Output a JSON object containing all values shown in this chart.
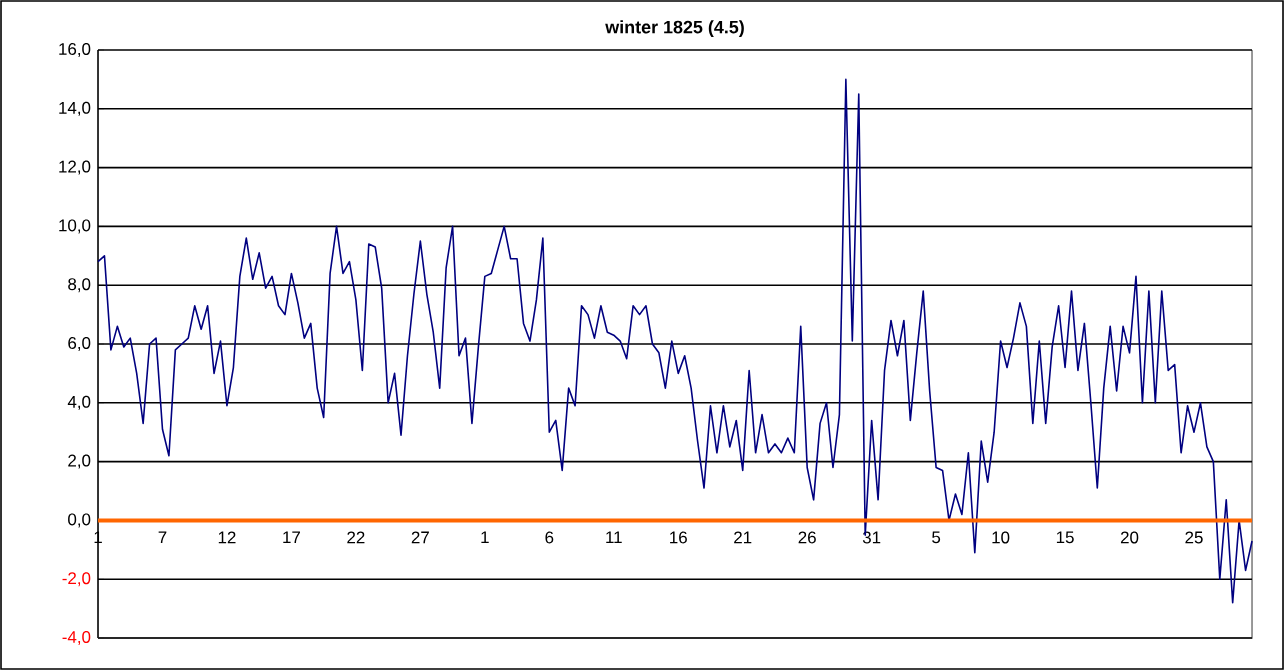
{
  "chart_data": {
    "type": "line",
    "title": "winter 1825 (4.5)",
    "categories": [
      "1",
      null,
      null,
      null,
      null,
      null,
      null,
      null,
      null,
      null,
      "7",
      null,
      null,
      null,
      null,
      null,
      null,
      null,
      null,
      null,
      "12",
      null,
      null,
      null,
      null,
      null,
      null,
      null,
      null,
      null,
      "17",
      null,
      null,
      null,
      null,
      null,
      null,
      null,
      null,
      null,
      "22",
      null,
      null,
      null,
      null,
      null,
      null,
      null,
      null,
      null,
      "27",
      null,
      null,
      null,
      null,
      null,
      null,
      null,
      null,
      null,
      "1",
      null,
      null,
      null,
      null,
      null,
      null,
      null,
      null,
      null,
      "6",
      null,
      null,
      null,
      null,
      null,
      null,
      null,
      null,
      null,
      "11",
      null,
      null,
      null,
      null,
      null,
      null,
      null,
      null,
      null,
      "16",
      null,
      null,
      null,
      null,
      null,
      null,
      null,
      null,
      null,
      "21",
      null,
      null,
      null,
      null,
      null,
      null,
      null,
      null,
      null,
      "26",
      null,
      null,
      null,
      null,
      null,
      null,
      null,
      null,
      null,
      "31",
      null,
      null,
      null,
      null,
      null,
      null,
      null,
      null,
      null,
      "5",
      null,
      null,
      null,
      null,
      null,
      null,
      null,
      null,
      null,
      "10",
      null,
      null,
      null,
      null,
      null,
      null,
      null,
      null,
      null,
      "15",
      null,
      null,
      null,
      null,
      null,
      null,
      null,
      null,
      null,
      "20",
      null,
      null,
      null,
      null,
      null,
      null,
      null,
      null,
      null,
      "25",
      null,
      null,
      null,
      null,
      null,
      null,
      null,
      null,
      null
    ],
    "ylim": [
      -4,
      16
    ],
    "yticks": [
      {
        "value": -4,
        "label": "-4,0"
      },
      {
        "value": -2,
        "label": "-2,0"
      },
      {
        "value": 0,
        "label": "0,0"
      },
      {
        "value": 2,
        "label": "2,0"
      },
      {
        "value": 4,
        "label": "4,0"
      },
      {
        "value": 6,
        "label": "6,0"
      },
      {
        "value": 8,
        "label": "8,0"
      },
      {
        "value": 10,
        "label": "10,0"
      },
      {
        "value": 12,
        "label": "12,0"
      },
      {
        "value": 14,
        "label": "14,0"
      },
      {
        "value": 16,
        "label": "16,0"
      }
    ],
    "grid": "y",
    "marker": "none",
    "line_style": "solid",
    "series": [
      {
        "color": "#000080",
        "values": [
          8.8,
          9.0,
          5.8,
          6.6,
          5.9,
          6.2,
          5.0,
          3.3,
          6.0,
          6.2,
          3.1,
          2.2,
          5.8,
          6.0,
          6.2,
          7.3,
          6.5,
          7.3,
          5.0,
          6.1,
          3.9,
          5.2,
          8.3,
          9.6,
          8.2,
          9.1,
          7.9,
          8.3,
          7.3,
          7.0,
          8.4,
          7.4,
          6.2,
          6.7,
          4.5,
          3.5,
          8.4,
          10.0,
          8.4,
          8.8,
          7.5,
          5.1,
          9.4,
          9.3,
          7.9,
          4.0,
          5.0,
          2.9,
          5.6,
          7.7,
          9.5,
          7.7,
          6.4,
          4.5,
          8.6,
          10.0,
          5.6,
          6.2,
          3.3,
          5.9,
          8.3,
          8.4,
          9.2,
          10.0,
          8.9,
          8.9,
          6.7,
          6.1,
          7.5,
          9.6,
          3.0,
          3.4,
          1.7,
          4.5,
          3.9,
          7.3,
          7.0,
          6.2,
          7.3,
          6.4,
          6.3,
          6.1,
          5.5,
          7.3,
          7.0,
          7.3,
          6.0,
          5.7,
          4.5,
          6.1,
          5.0,
          5.6,
          4.5,
          2.7,
          1.1,
          3.9,
          2.3,
          3.9,
          2.5,
          3.4,
          1.7,
          5.1,
          2.3,
          3.6,
          2.3,
          2.6,
          2.3,
          2.8,
          2.3,
          6.6,
          1.8,
          0.7,
          3.3,
          4.0,
          1.8,
          3.6,
          15.0,
          6.1,
          14.5,
          -0.5,
          3.4,
          0.7,
          5.1,
          6.8,
          5.6,
          6.8,
          3.4,
          5.7,
          7.8,
          4.4,
          1.8,
          1.7,
          0.0,
          0.9,
          0.2,
          2.3,
          -1.1,
          2.7,
          1.3,
          3.0,
          6.1,
          5.2,
          6.2,
          7.4,
          6.6,
          3.3,
          6.1,
          3.3,
          5.9,
          7.3,
          5.2,
          7.8,
          5.1,
          6.7,
          4.0,
          1.1,
          4.5,
          6.6,
          4.4,
          6.6,
          5.7,
          8.3,
          4.0,
          7.8,
          4.0,
          7.8,
          5.1,
          5.3,
          2.3,
          3.9,
          3.0,
          4.0,
          2.5,
          2.0,
          -2.0,
          0.7,
          -2.8,
          0.0,
          -1.7,
          -0.7
        ]
      }
    ]
  }
}
